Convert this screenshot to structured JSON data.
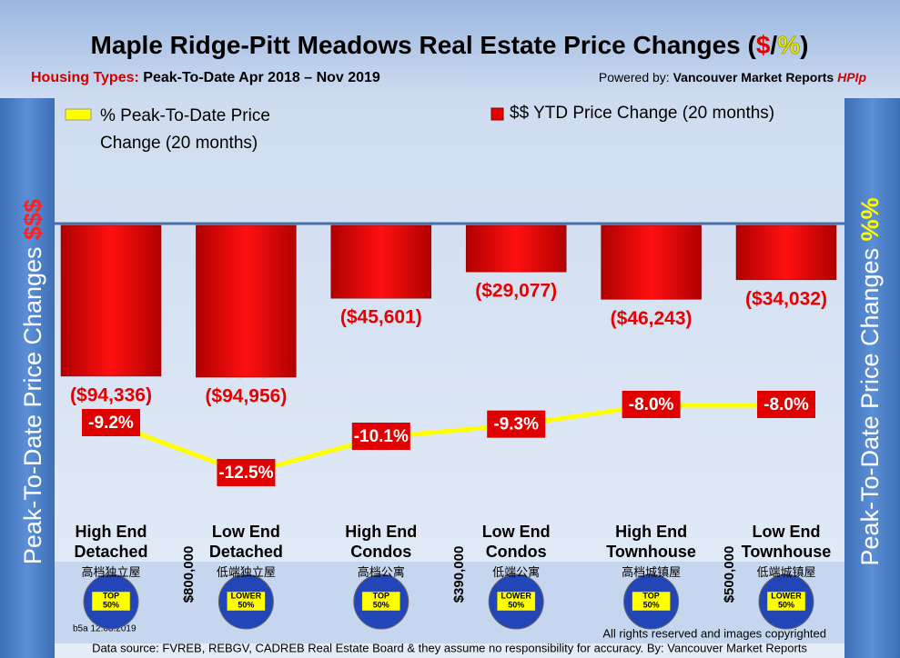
{
  "chart_data": {
    "type": "bar",
    "title": [
      "Maple Ridge-Pitt Meadows Real Estate Price Changes (",
      "$",
      "/",
      "%",
      ")"
    ],
    "subtitle": [
      "Housing Types: ",
      "Peak-To-Date Apr 2018 – Nov 2019"
    ],
    "powered_by": [
      "Powered by: ",
      "Vancouver Market Reports ",
      "HPIp"
    ],
    "left_axis_label": [
      "Peak-To-Date Price Changes ",
      "$$$"
    ],
    "right_axis_label": [
      "Peak-To-Date  Price  Changes  ",
      "%%"
    ],
    "categories": [
      "High End Detached",
      "Low End Detached",
      "High End Condos",
      "Low End Condos",
      "High End Townhouse",
      "Low End Townhouse"
    ],
    "category_subtitles": [
      "高档独立屋",
      "低端独立屋",
      "高档公寓",
      "低端公寓",
      "高档城镇屋",
      "低端城镇屋"
    ],
    "badges": [
      [
        "TOP",
        "50%"
      ],
      [
        "LOWER",
        "50%"
      ],
      [
        "TOP",
        "50%"
      ],
      [
        "LOWER",
        "50%"
      ],
      [
        "TOP",
        "50%"
      ],
      [
        "LOWER",
        "50%"
      ]
    ],
    "price_thresholds": [
      "$800,000",
      "$390,000",
      "$500,000"
    ],
    "series": [
      {
        "name": "$$ YTD Price Change (20 months)",
        "type": "bar",
        "color": "#e60000",
        "values": [
          -94336,
          -94956,
          -45601,
          -29077,
          -46243,
          -34032
        ],
        "value_labels": [
          "($94,336)",
          "($94,956)",
          "($45,601)",
          "($29,077)",
          "($46,243)",
          "($34,032)"
        ]
      },
      {
        "name": "% Peak-To-Date Price Change (20 months)",
        "type": "line",
        "color": "#ffff00",
        "values": [
          -9.2,
          -12.5,
          -10.1,
          -9.3,
          -8.0,
          -8.0
        ],
        "value_labels": [
          "-9.2%",
          "-12.5%",
          "-10.1%",
          "-9.3%",
          "-8.0%",
          "-8.0%"
        ]
      }
    ],
    "footer_left": "b5a 12.08.2019",
    "footer_right": "All rights reserved and  images copyrighted",
    "footer_source": "Data source: FVREB, REBGV, CADREB Real Estate Board & they assume no responsibility for accuracy. By: Vancouver Market Reports"
  }
}
